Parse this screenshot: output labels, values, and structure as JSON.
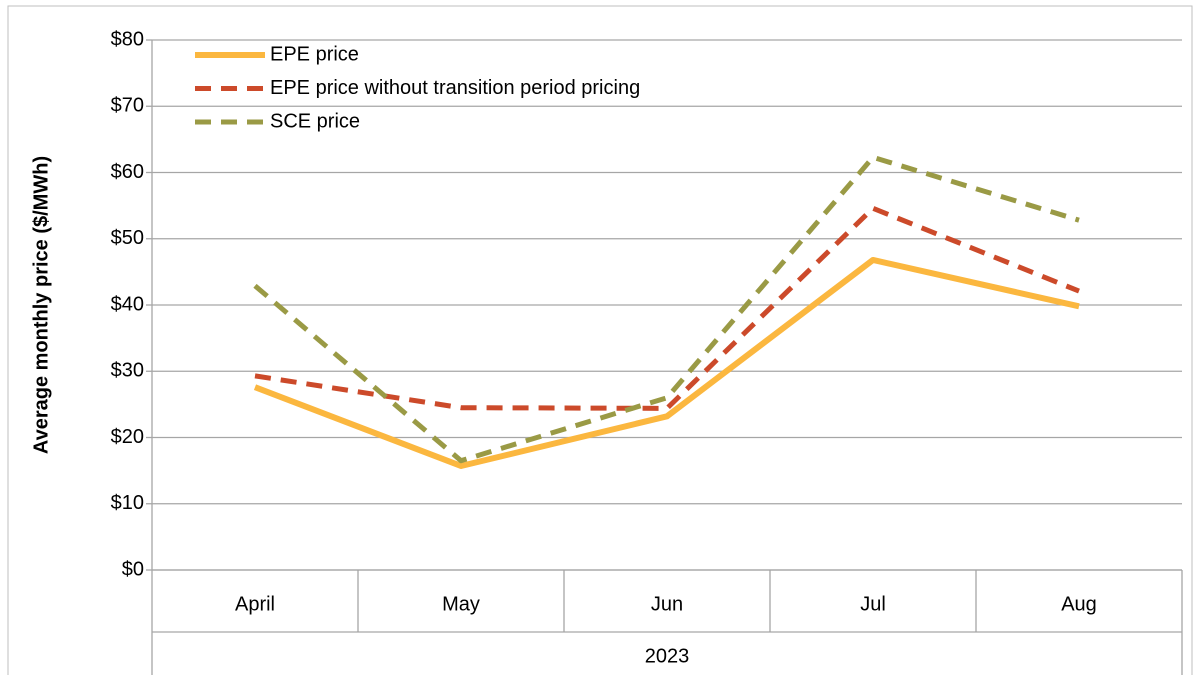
{
  "chart_data": {
    "type": "line",
    "y_label": "Average monthly price ($/MWh)",
    "x_group": "2023",
    "categories": [
      "April",
      "May",
      "Jun",
      "Jul",
      "Aug"
    ],
    "series": [
      {
        "name": "EPE price",
        "color": "#fbb73f",
        "style": "solid",
        "values": [
          27.6,
          15.7,
          23.2,
          46.8,
          39.8
        ]
      },
      {
        "name": "EPE price without transition period pricing",
        "color": "#cc4a2a",
        "style": "dashed",
        "values": [
          29.3,
          24.5,
          24.4,
          54.6,
          42.1
        ]
      },
      {
        "name": "SCE price",
        "color": "#9a9a45",
        "style": "dashed",
        "values": [
          42.9,
          16.5,
          26.0,
          62.3,
          52.8
        ]
      }
    ],
    "ylim": [
      0,
      80
    ],
    "yticks": [
      {
        "value": 0,
        "label": "$0"
      },
      {
        "value": 10,
        "label": "$10"
      },
      {
        "value": 20,
        "label": "$20"
      },
      {
        "value": 30,
        "label": "$30"
      },
      {
        "value": 40,
        "label": "$40"
      },
      {
        "value": 50,
        "label": "$50"
      },
      {
        "value": 60,
        "label": "$60"
      },
      {
        "value": 70,
        "label": "$70"
      },
      {
        "value": 80,
        "label": "$80"
      }
    ],
    "grid": true,
    "legend": "upper left"
  }
}
